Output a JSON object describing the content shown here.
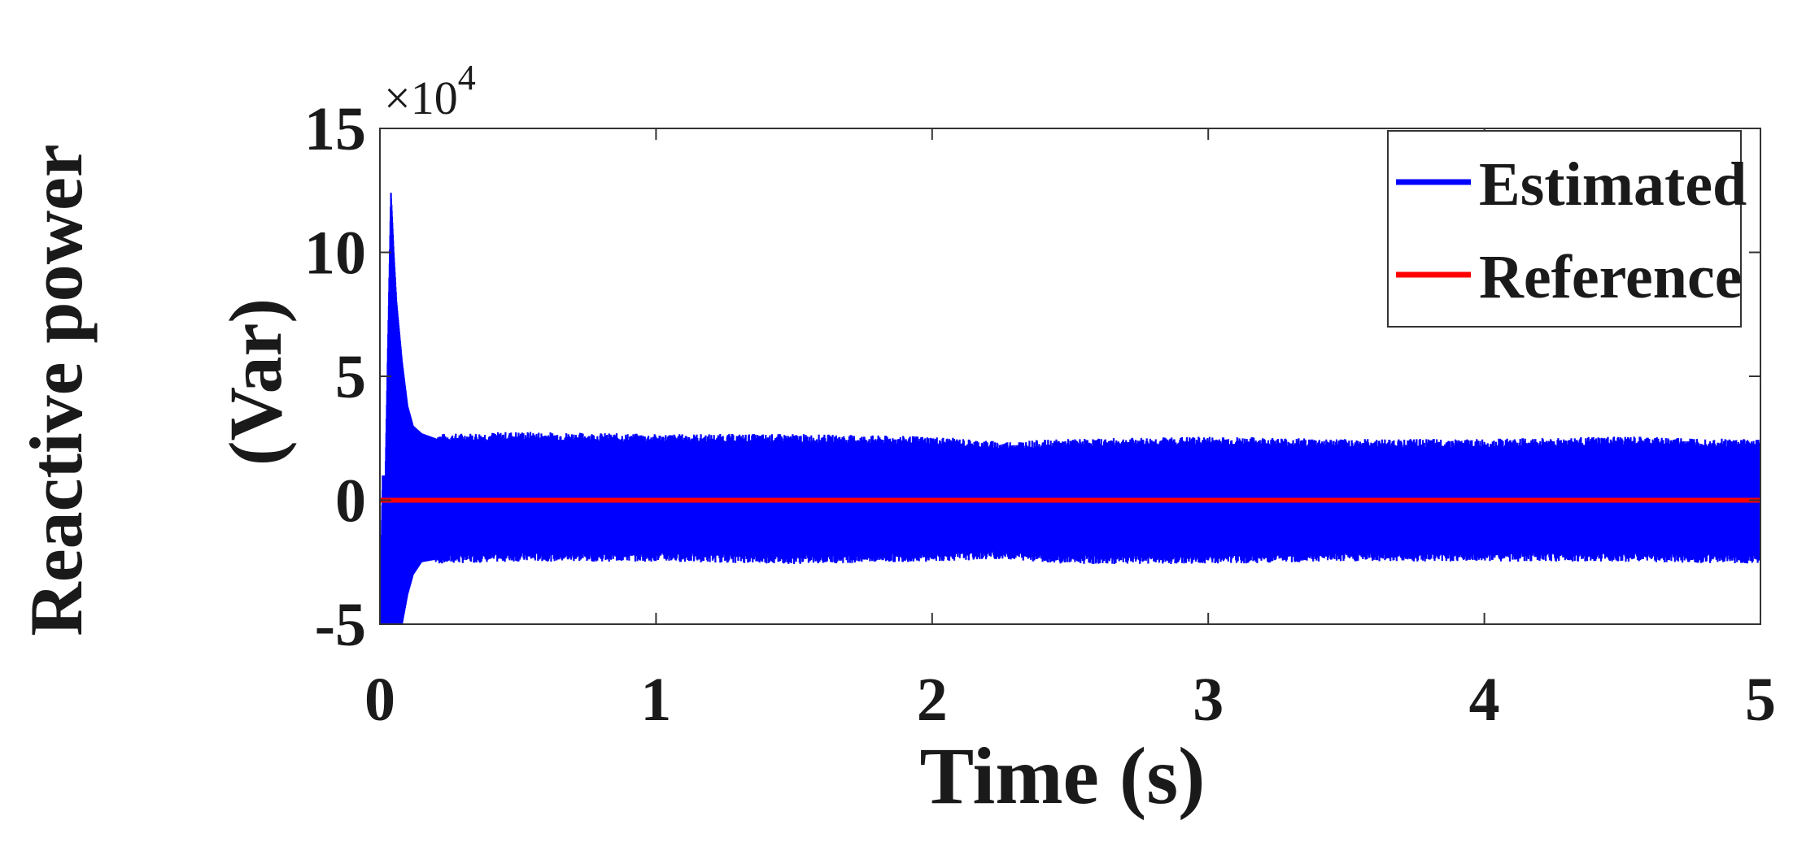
{
  "chart_data": {
    "type": "line",
    "xlabel": "Time (s)",
    "ylabel_line1": "Reactive power",
    "ylabel_line2": "(Var)",
    "y_exponent_base": "×10",
    "y_exponent_power": "4",
    "xlim": [
      0,
      5
    ],
    "ylim": [
      -5,
      15
    ],
    "y_scale_factor": 10000,
    "xticks": [
      "0",
      "1",
      "2",
      "3",
      "4",
      "5"
    ],
    "yticks": [
      "-5",
      "0",
      "5",
      "10",
      "15"
    ],
    "grid": false,
    "legend_position": "top-right",
    "series": [
      {
        "name": "Estimated",
        "color": "#0000ff",
        "kind": "oscillating-band",
        "transient": {
          "x": [
            0.0,
            0.01,
            0.02,
            0.04,
            0.05,
            0.06,
            0.08,
            0.1,
            0.12,
            0.15,
            0.2
          ],
          "upper": [
            -5,
            1,
            1,
            12.4,
            10,
            8,
            5.6,
            3.8,
            3.0,
            2.7,
            2.5
          ],
          "lower": [
            -5,
            -5,
            -5,
            -5,
            -5,
            -5,
            -5,
            -3.8,
            -3.0,
            -2.5,
            -2.4
          ]
        },
        "envelope": {
          "x": [
            0.2,
            0.5,
            1.0,
            1.5,
            2.0,
            2.25,
            2.5,
            3.0,
            3.5,
            4.0,
            4.5,
            5.0
          ],
          "upper": [
            2.5,
            2.6,
            2.5,
            2.5,
            2.4,
            2.2,
            2.3,
            2.4,
            2.3,
            2.3,
            2.4,
            2.3
          ],
          "lower": [
            -2.4,
            -2.3,
            -2.3,
            -2.4,
            -2.3,
            -2.2,
            -2.4,
            -2.4,
            -2.3,
            -2.3,
            -2.3,
            -2.4
          ]
        }
      },
      {
        "name": "Reference",
        "color": "#ff0000",
        "kind": "line",
        "x": [
          0,
          5
        ],
        "y": [
          0,
          0
        ]
      }
    ]
  }
}
